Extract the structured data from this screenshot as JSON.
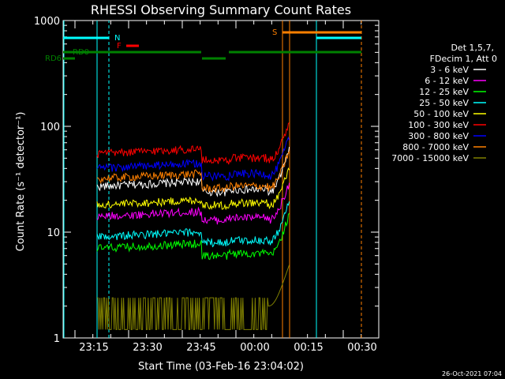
{
  "chart_data": {
    "type": "line",
    "title": "RHESSI Observing Summary Count Rates",
    "xlabel": "Start Time (03-Feb-16 23:04:02)",
    "ylabel": "Count Rate (s⁻¹ detector⁻¹)",
    "y_scale": "log",
    "ylim": [
      1,
      1000
    ],
    "y_ticks": [
      "1",
      "10",
      "100",
      "1000"
    ],
    "x_tick_labels": [
      "23:15",
      "23:30",
      "23:45",
      "00:00",
      "00:15",
      "00:30"
    ],
    "legend_header": [
      "Det 1,5,7,",
      "FDecim 1, Att 0"
    ],
    "legend_placement": "right",
    "timestamp": "26-Oct-2021 07:04",
    "flags": {
      "N_label": "N",
      "F_label": "F",
      "S_label": "S",
      "RD0_label": "RD0",
      "RD6_label": "RD6"
    },
    "series": [
      {
        "name": "3 - 6 keV",
        "color": "#ffffff",
        "level_a": 27,
        "level_b": 24,
        "end": 60
      },
      {
        "name": "6 - 12 keV",
        "color": "#ff00ff",
        "level_a": 14,
        "level_b": 13,
        "end": 30
      },
      {
        "name": "12 - 25 keV",
        "color": "#00ff00",
        "level_a": 7,
        "level_b": 6,
        "end": 15
      },
      {
        "name": "25 - 50 keV",
        "color": "#00ffff",
        "level_a": 9,
        "level_b": 8,
        "end": 20
      },
      {
        "name": "50 - 100 keV",
        "color": "#ffff00",
        "level_a": 18,
        "level_b": 18,
        "end": 40
      },
      {
        "name": "100 - 300 keV",
        "color": "#ff0000",
        "level_a": 55,
        "level_b": 48,
        "end": 110
      },
      {
        "name": "300 - 800 keV",
        "color": "#0000ff",
        "level_a": 40,
        "level_b": 34,
        "end": 80
      },
      {
        "name": "800 - 7000 keV",
        "color": "#ff8000",
        "level_a": 32,
        "level_b": 26,
        "end": 60
      },
      {
        "name": "7000 - 15000 keV",
        "color": "#808000",
        "level_a": 2,
        "level_b": 2,
        "end": 5
      }
    ]
  }
}
